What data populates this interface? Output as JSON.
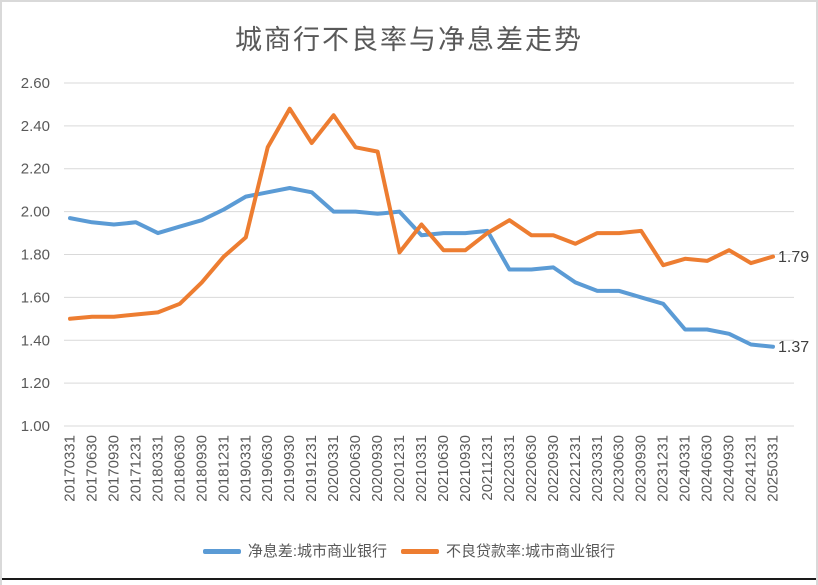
{
  "title": "城商行不良率与净息差走势",
  "colors": {
    "grid": "#D9D9D9",
    "axis_text": "#595959",
    "title_text": "#595959",
    "data_label_text": "#404040",
    "series_blue": "#5B9BD5",
    "series_orange": "#ED7D31"
  },
  "chart_data": {
    "type": "line",
    "title": "城商行不良率与净息差走势",
    "xlabel": "",
    "ylabel": "",
    "ylim": [
      1.0,
      2.6
    ],
    "ytick_step": 0.2,
    "yticks": [
      "1.00",
      "1.20",
      "1.40",
      "1.60",
      "1.80",
      "2.00",
      "2.20",
      "2.40",
      "2.60"
    ],
    "grid": true,
    "legend_position": "bottom",
    "x": [
      "20170331",
      "20170630",
      "20170930",
      "20171231",
      "20180331",
      "20180630",
      "20180930",
      "20181231",
      "20190331",
      "20190630",
      "20190930",
      "20191231",
      "20200331",
      "20200630",
      "20200930",
      "20201231",
      "20210331",
      "20210630",
      "20210930",
      "20211231",
      "20220331",
      "20220630",
      "20220930",
      "20221231",
      "20230331",
      "20230630",
      "20230930",
      "20231231",
      "20240331",
      "20240630",
      "20240930",
      "20241231",
      "20250331"
    ],
    "series": [
      {
        "name": "净息差:城市商业银行",
        "color": "#5B9BD5",
        "end_label": "1.37",
        "values": [
          1.97,
          1.95,
          1.94,
          1.95,
          1.9,
          1.93,
          1.96,
          2.01,
          2.07,
          2.09,
          2.11,
          2.09,
          2.0,
          2.0,
          1.99,
          2.0,
          1.89,
          1.9,
          1.9,
          1.91,
          1.73,
          1.73,
          1.74,
          1.67,
          1.63,
          1.63,
          1.6,
          1.57,
          1.45,
          1.45,
          1.43,
          1.38,
          1.37
        ]
      },
      {
        "name": "不良贷款率:城市商业银行",
        "color": "#ED7D31",
        "end_label": "1.79",
        "values": [
          1.5,
          1.51,
          1.51,
          1.52,
          1.53,
          1.57,
          1.67,
          1.79,
          1.88,
          2.3,
          2.48,
          2.32,
          2.45,
          2.3,
          2.28,
          1.81,
          1.94,
          1.82,
          1.82,
          1.9,
          1.96,
          1.89,
          1.89,
          1.85,
          1.9,
          1.9,
          1.91,
          1.75,
          1.78,
          1.77,
          1.82,
          1.76,
          1.79
        ]
      }
    ]
  }
}
